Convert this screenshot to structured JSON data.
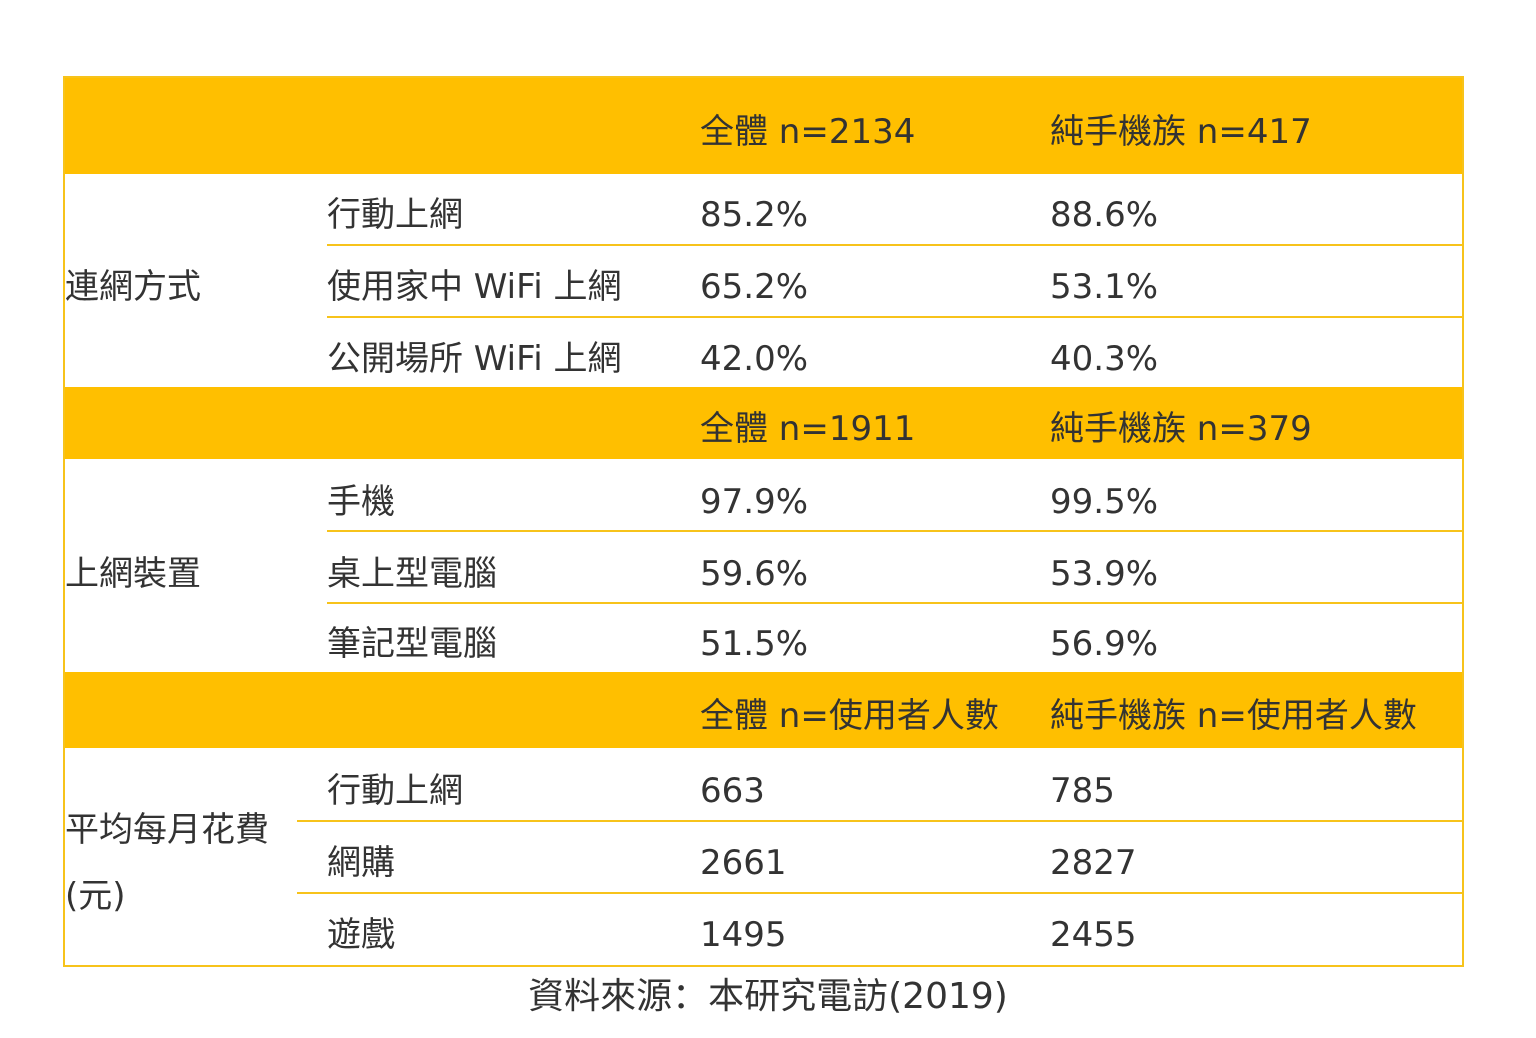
{
  "colors": {
    "header_band": "#FFBF00",
    "divider": "#F7C31B",
    "text": "#333333"
  },
  "sections": [
    {
      "header": {
        "all": "全體  n=2134",
        "mobile_only": "純手機族  n=417"
      },
      "category": "連網方式",
      "rows": [
        {
          "label": "行動上網",
          "all": "85.2%",
          "mobile_only": "88.6%"
        },
        {
          "label": "使用家中 WiFi 上網",
          "all": "65.2%",
          "mobile_only": "53.1%"
        },
        {
          "label": "公開場所 WiFi 上網",
          "all": "42.0%",
          "mobile_only": "40.3%"
        }
      ]
    },
    {
      "header": {
        "all": "全體  n=1911",
        "mobile_only": "純手機族  n=379"
      },
      "category": "上網裝置",
      "rows": [
        {
          "label": "手機",
          "all": "97.9%",
          "mobile_only": "99.5%"
        },
        {
          "label": "桌上型電腦",
          "all": "59.6%",
          "mobile_only": "53.9%"
        },
        {
          "label": "筆記型電腦",
          "all": "51.5%",
          "mobile_only": "56.9%"
        }
      ]
    },
    {
      "header": {
        "all": "全體  n=使用者人數",
        "mobile_only": "純手機族  n=使用者人數"
      },
      "category_line1": "平均每月花費",
      "category_line2": "(元)",
      "rows": [
        {
          "label": "行動上網",
          "all": "663",
          "mobile_only": "785"
        },
        {
          "label": "網購",
          "all": "2661",
          "mobile_only": "2827"
        },
        {
          "label": "遊戲",
          "all": "1495",
          "mobile_only": "2455"
        }
      ]
    }
  ],
  "source_note": "資料來源：本研究電訪(2019)"
}
